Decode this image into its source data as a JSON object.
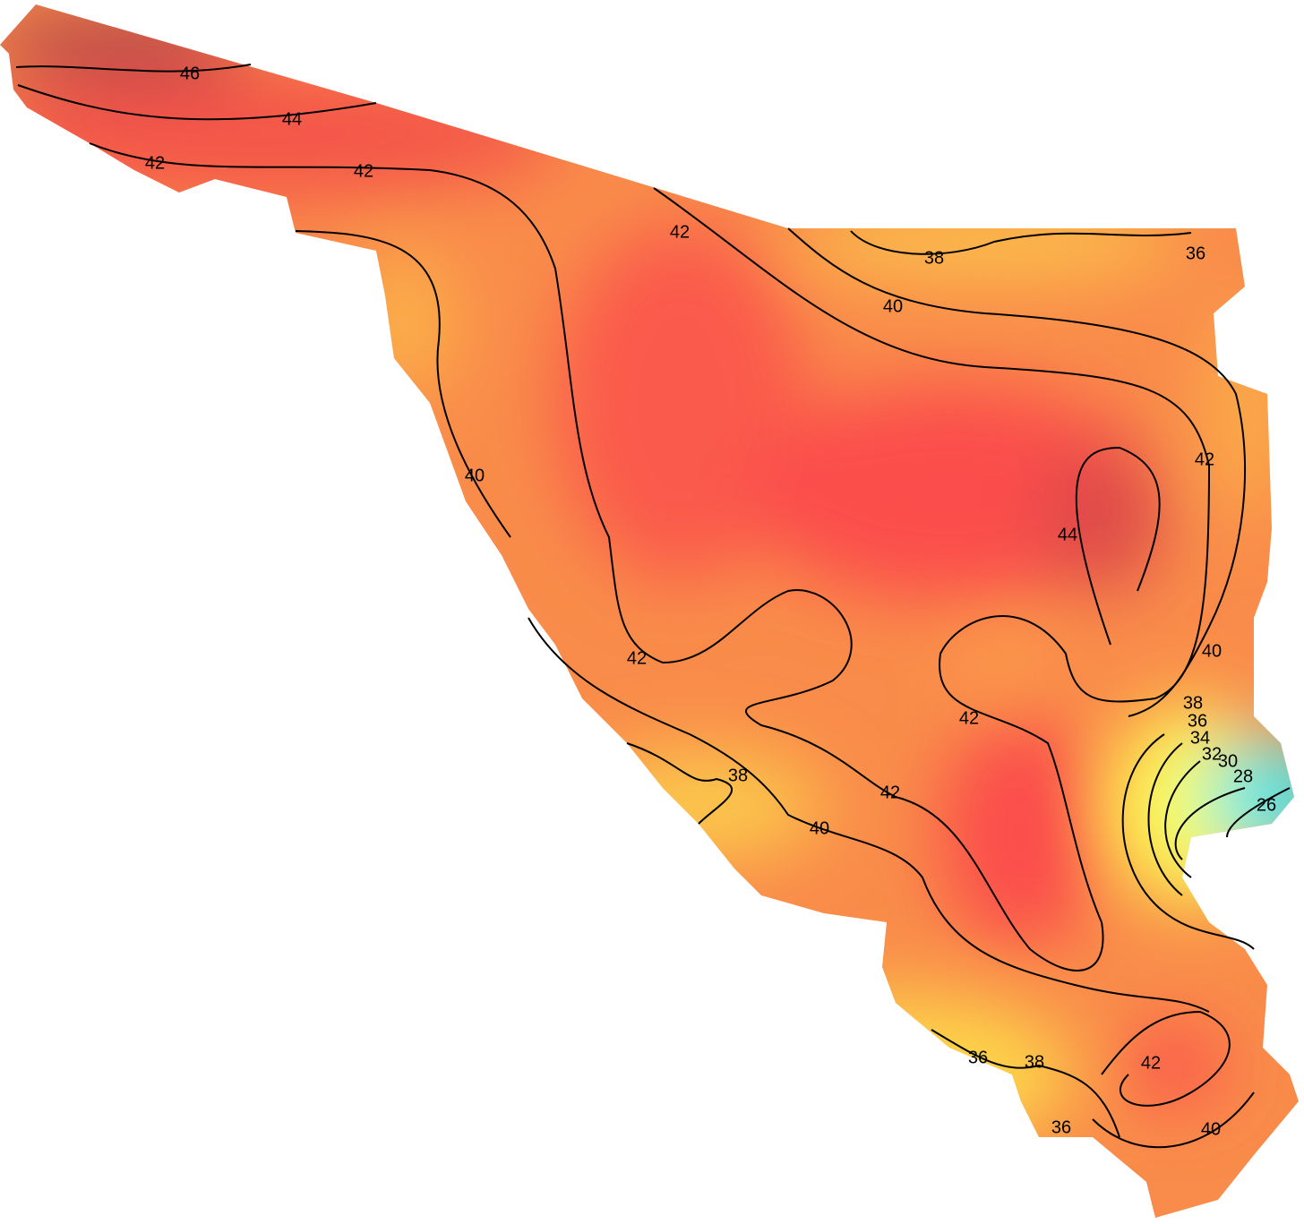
{
  "contour_labels": [
    46,
    44,
    42,
    42,
    42,
    38,
    40,
    36,
    40,
    42,
    44,
    42,
    42,
    40,
    38,
    36,
    34,
    32,
    30,
    28,
    26,
    38,
    40,
    42,
    42,
    36,
    38,
    36,
    40
  ]
}
